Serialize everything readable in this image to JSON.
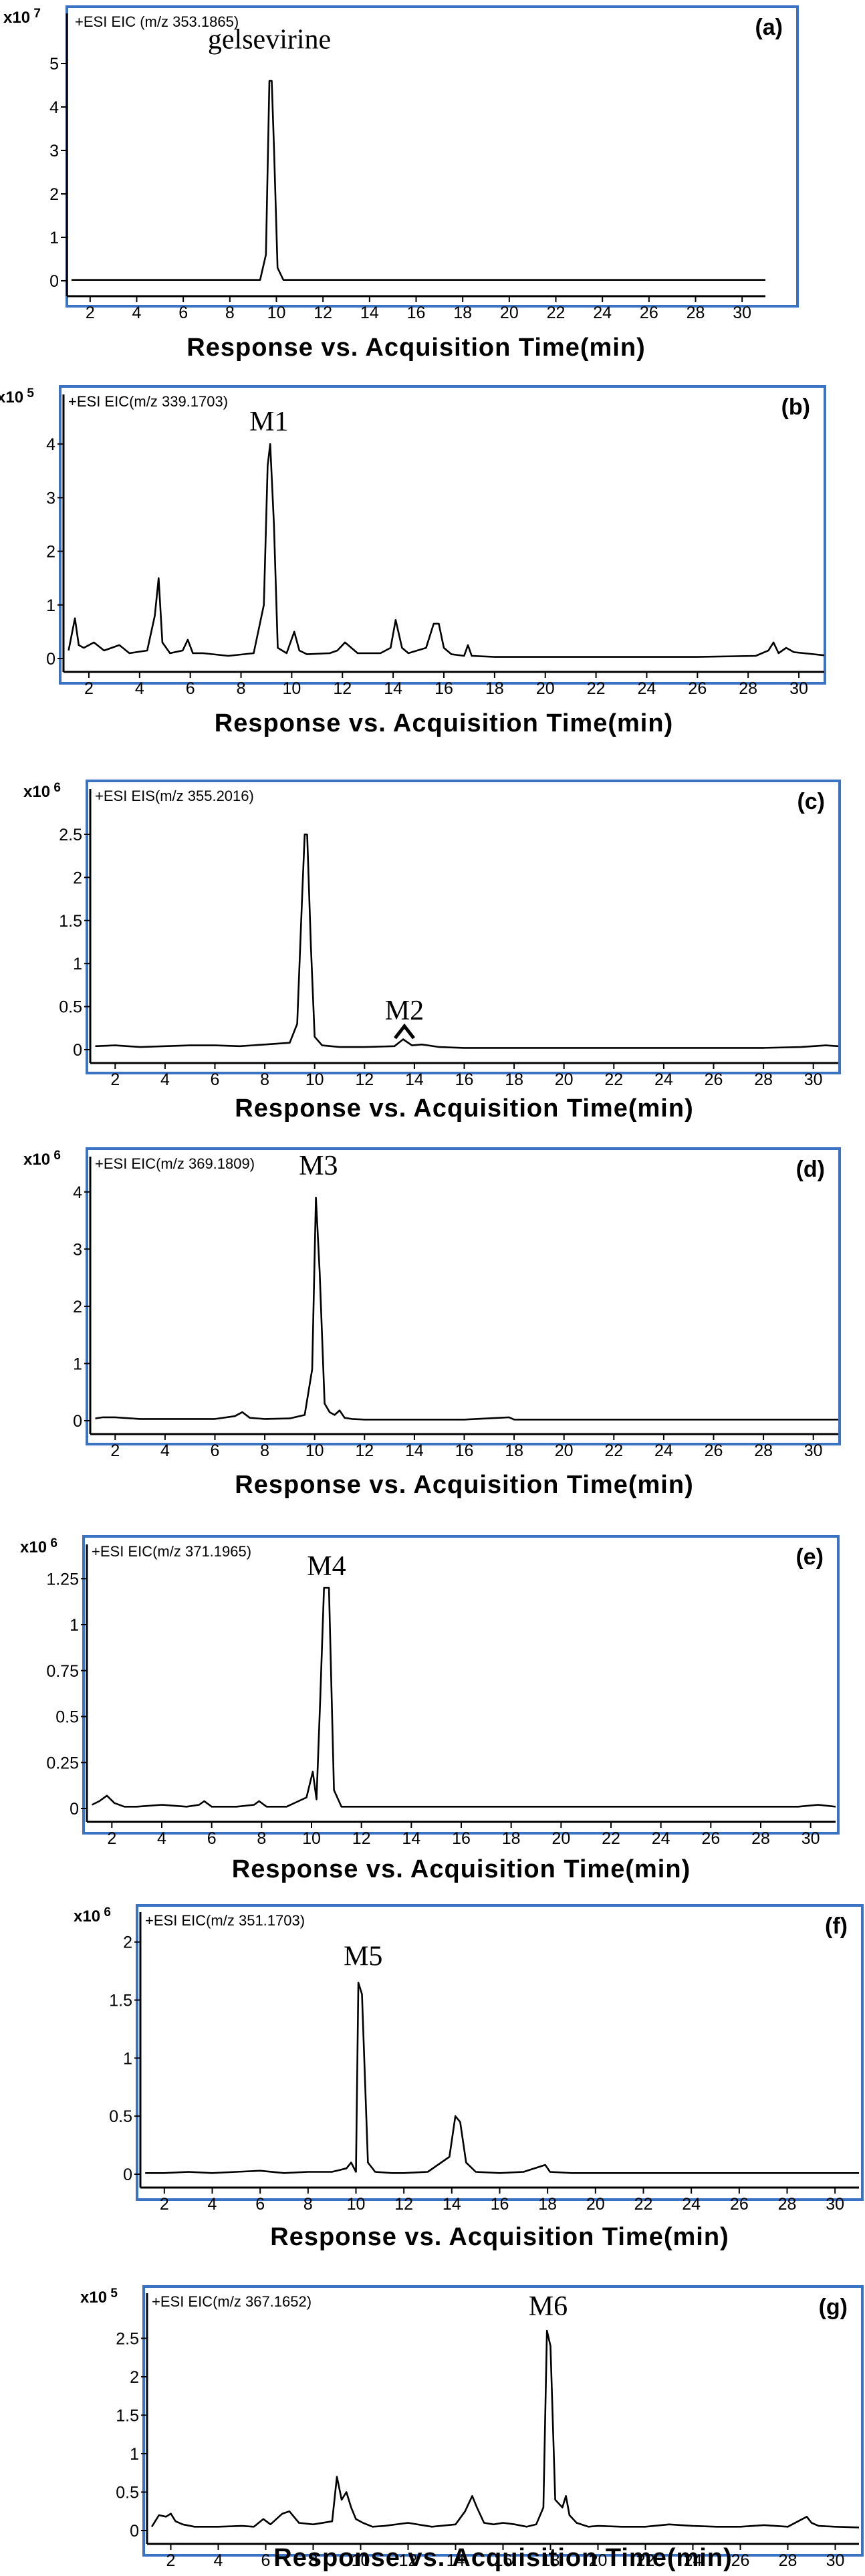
{
  "chart_data": [
    {
      "type": "line",
      "label": "(a)",
      "header": "+ESI EIC (m/z 353.1865)",
      "multiplier": "x10 7",
      "xlabel": "Response  vs.  Acquisition  Time(min)",
      "xlim": [
        1,
        31
      ],
      "ylim": [
        0,
        6
      ],
      "x_ticks": [
        "2",
        "4",
        "6",
        "8",
        "10",
        "12",
        "14",
        "16",
        "18",
        "20",
        "22",
        "24",
        "26",
        "28",
        "30"
      ],
      "y_ticks": [
        "0",
        "1",
        "2",
        "3",
        "4",
        "5"
      ],
      "annotations": [
        {
          "text": "gelsevirine",
          "x": 9.7,
          "y": 5.35
        }
      ],
      "series": [
        {
          "x": [
            1.2,
            9.3,
            9.55,
            9.7,
            9.8,
            9.9,
            10.05,
            10.3,
            31
          ],
          "y": [
            0.02,
            0.02,
            0.6,
            4.6,
            4.6,
            3.0,
            0.3,
            0.02,
            0.02
          ]
        }
      ]
    },
    {
      "type": "line",
      "label": "(b)",
      "header": "+ESI EIC(m/z 339.1703)",
      "multiplier": "x10 5",
      "xlabel": "Response  vs.  Acquisition  Time(min)",
      "xlim": [
        1,
        31
      ],
      "ylim": [
        0,
        4.8
      ],
      "x_ticks": [
        "2",
        "4",
        "6",
        "8",
        "10",
        "12",
        "14",
        "16",
        "18",
        "20",
        "22",
        "24",
        "26",
        "28",
        "30"
      ],
      "y_ticks": [
        "0",
        "1",
        "2",
        "3",
        "4"
      ],
      "annotations": [
        {
          "text": "M1",
          "x": 9.1,
          "y": 4.25
        }
      ],
      "series": [
        {
          "x": [
            1.2,
            1.45,
            1.6,
            1.8,
            2.2,
            2.6,
            3.2,
            3.6,
            4.3,
            4.6,
            4.75,
            4.9,
            5.2,
            5.7,
            5.9,
            6.1,
            6.5,
            7.5,
            8.5,
            8.9,
            9.05,
            9.15,
            9.3,
            9.45,
            9.8,
            10.1,
            10.3,
            10.6,
            11.5,
            11.8,
            12.1,
            12.6,
            13.5,
            13.9,
            14.1,
            14.35,
            14.6,
            15.3,
            15.6,
            15.8,
            16.0,
            16.3,
            16.8,
            16.95,
            17.1,
            18,
            20,
            22,
            24,
            26,
            28.3,
            28.8,
            29.0,
            29.2,
            29.5,
            29.8,
            30.2,
            31
          ],
          "y": [
            0.15,
            0.75,
            0.25,
            0.2,
            0.3,
            0.15,
            0.25,
            0.1,
            0.15,
            0.8,
            1.5,
            0.3,
            0.1,
            0.15,
            0.35,
            0.1,
            0.1,
            0.05,
            0.1,
            1.0,
            3.6,
            4.0,
            2.5,
            0.2,
            0.1,
            0.5,
            0.15,
            0.08,
            0.1,
            0.15,
            0.3,
            0.1,
            0.1,
            0.2,
            0.72,
            0.2,
            0.1,
            0.2,
            0.65,
            0.65,
            0.2,
            0.08,
            0.05,
            0.25,
            0.05,
            0.03,
            0.03,
            0.03,
            0.03,
            0.03,
            0.05,
            0.15,
            0.3,
            0.1,
            0.2,
            0.12,
            0.1,
            0.06
          ]
        }
      ]
    },
    {
      "type": "line",
      "label": "(c)",
      "header": "+ESI EIS(m/z 355.2016)",
      "multiplier": "x10 6",
      "xlabel": "Response  vs.  Acquisition  Time(min)",
      "xlim": [
        1,
        31
      ],
      "ylim": [
        0,
        2.95
      ],
      "x_ticks": [
        "2",
        "4",
        "6",
        "8",
        "10",
        "12",
        "14",
        "16",
        "18",
        "20",
        "22",
        "24",
        "26",
        "28",
        "30"
      ],
      "y_ticks": [
        "0",
        "0.5",
        "1",
        "1.5",
        "2",
        "2.5"
      ],
      "annotations": [
        {
          "text": "M2",
          "x": 13.6,
          "y": 0.35
        }
      ],
      "series": [
        {
          "x": [
            1.2,
            2.0,
            3.0,
            4.0,
            5.0,
            6.0,
            7.0,
            8.0,
            9.0,
            9.3,
            9.5,
            9.6,
            9.7,
            9.85,
            10.0,
            10.3,
            11,
            12,
            13.2,
            13.55,
            13.9,
            14.3,
            15,
            16,
            18,
            20,
            22,
            24,
            26,
            28,
            29.5,
            30.5,
            31
          ],
          "y": [
            0.04,
            0.05,
            0.03,
            0.04,
            0.05,
            0.05,
            0.04,
            0.06,
            0.08,
            0.3,
            1.8,
            2.5,
            2.5,
            1.2,
            0.15,
            0.05,
            0.03,
            0.03,
            0.04,
            0.12,
            0.05,
            0.06,
            0.03,
            0.02,
            0.02,
            0.02,
            0.02,
            0.02,
            0.02,
            0.02,
            0.03,
            0.05,
            0.04
          ]
        }
      ]
    },
    {
      "type": "line",
      "label": "(d)",
      "header": "+ESI EIC(m/z 369.1809)",
      "multiplier": "x10 6",
      "xlabel": "Response  vs.  Acquisition  Time(min)",
      "xlim": [
        1,
        31
      ],
      "ylim": [
        0,
        4.5
      ],
      "x_ticks": [
        "2",
        "4",
        "6",
        "8",
        "10",
        "12",
        "14",
        "16",
        "18",
        "20",
        "22",
        "24",
        "26",
        "28",
        "30"
      ],
      "y_ticks": [
        "0",
        "1",
        "2",
        "3",
        "4"
      ],
      "annotations": [
        {
          "text": "M3",
          "x": 10.15,
          "y": 4.3
        }
      ],
      "series": [
        {
          "x": [
            1.2,
            1.5,
            2.0,
            3,
            4,
            5,
            6,
            6.8,
            7.1,
            7.4,
            8,
            9,
            9.6,
            9.9,
            10.05,
            10.2,
            10.4,
            10.6,
            10.8,
            11.0,
            11.2,
            11.5,
            12,
            14,
            16,
            17.8,
            18,
            20,
            22,
            24,
            26,
            28,
            30,
            31
          ],
          "y": [
            0.04,
            0.06,
            0.06,
            0.03,
            0.03,
            0.03,
            0.03,
            0.08,
            0.15,
            0.05,
            0.03,
            0.04,
            0.1,
            0.9,
            3.9,
            2.6,
            0.3,
            0.15,
            0.1,
            0.18,
            0.05,
            0.03,
            0.02,
            0.02,
            0.02,
            0.06,
            0.02,
            0.02,
            0.02,
            0.02,
            0.02,
            0.02,
            0.02,
            0.02
          ]
        }
      ]
    },
    {
      "type": "line",
      "label": "(e)",
      "header": "+ESI EIC(m/z 371.1965)",
      "multiplier": "x10 6",
      "xlabel": "Response  vs.  Acquisition  Time(min)",
      "xlim": [
        1,
        31
      ],
      "ylim": [
        0,
        1.4
      ],
      "x_ticks": [
        "2",
        "4",
        "6",
        "8",
        "10",
        "12",
        "14",
        "16",
        "18",
        "20",
        "22",
        "24",
        "26",
        "28",
        "30"
      ],
      "y_ticks": [
        "0",
        "0.25",
        "0.5",
        "0.75",
        "1",
        "1.25"
      ],
      "annotations": [
        {
          "text": "M4",
          "x": 10.6,
          "y": 1.27
        }
      ],
      "series": [
        {
          "x": [
            1.2,
            1.5,
            1.8,
            2.1,
            2.5,
            3,
            4,
            5,
            5.5,
            5.7,
            6,
            7,
            7.7,
            7.9,
            8.2,
            9,
            9.8,
            10.05,
            10.2,
            10.35,
            10.5,
            10.7,
            10.9,
            11.2,
            12,
            13,
            14,
            15,
            16,
            17,
            18,
            20,
            22,
            24,
            26,
            28,
            29.5,
            30.3,
            31
          ],
          "y": [
            0.02,
            0.04,
            0.07,
            0.03,
            0.01,
            0.01,
            0.02,
            0.01,
            0.02,
            0.04,
            0.01,
            0.01,
            0.02,
            0.04,
            0.01,
            0.01,
            0.06,
            0.2,
            0.05,
            0.6,
            1.2,
            1.2,
            0.1,
            0.01,
            0.01,
            0.01,
            0.01,
            0.01,
            0.01,
            0.01,
            0.01,
            0.01,
            0.01,
            0.01,
            0.01,
            0.01,
            0.01,
            0.02,
            0.01
          ]
        }
      ]
    },
    {
      "type": "line",
      "label": "(f)",
      "header": "+ESI EIC(m/z 351.1703)",
      "multiplier": "x10 6",
      "xlabel": "Response  vs.  Acquisition  Time(min)",
      "xlim": [
        1,
        31
      ],
      "ylim": [
        0,
        2.2
      ],
      "x_ticks": [
        "2",
        "4",
        "6",
        "8",
        "10",
        "12",
        "14",
        "16",
        "18",
        "20",
        "22",
        "24",
        "26",
        "28",
        "30"
      ],
      "y_ticks": [
        "0",
        "0.5",
        "1",
        "1.5",
        "2"
      ],
      "annotations": [
        {
          "text": "M5",
          "x": 10.3,
          "y": 1.8
        }
      ],
      "series": [
        {
          "x": [
            1.2,
            2,
            3,
            4,
            5,
            6,
            7,
            8,
            9,
            9.6,
            9.8,
            10.0,
            10.1,
            10.25,
            10.5,
            10.8,
            11.5,
            12,
            13,
            13.9,
            14.15,
            14.35,
            14.6,
            15,
            16,
            17,
            17.9,
            18.1,
            19,
            20,
            22,
            24,
            26,
            28,
            30,
            31
          ],
          "y": [
            0.01,
            0.01,
            0.02,
            0.01,
            0.02,
            0.03,
            0.01,
            0.02,
            0.02,
            0.05,
            0.1,
            0.02,
            1.65,
            1.55,
            0.1,
            0.02,
            0.01,
            0.01,
            0.02,
            0.15,
            0.5,
            0.45,
            0.1,
            0.02,
            0.01,
            0.02,
            0.08,
            0.02,
            0.01,
            0.01,
            0.01,
            0.01,
            0.01,
            0.01,
            0.01,
            0.01
          ]
        }
      ]
    },
    {
      "type": "line",
      "label": "(g)",
      "header": "+ESI EIC(m/z 367.1652)",
      "multiplier": "x10 5",
      "xlabel": "Response  vs.  Acquisition  Time(min)",
      "xlim": [
        1,
        31
      ],
      "ylim": [
        0,
        3.0
      ],
      "x_ticks": [
        "2",
        "4",
        "6",
        "8",
        "10",
        "12",
        "14",
        "16",
        "18",
        "20",
        "22",
        "24",
        "26",
        "28",
        "30"
      ],
      "y_ticks": [
        "0",
        "0.5",
        "1",
        "1.5",
        "2",
        "2.5"
      ],
      "annotations": [
        {
          "text": "M6",
          "x": 17.9,
          "y": 2.8
        }
      ],
      "series": [
        {
          "x": [
            1.2,
            1.5,
            1.8,
            2.0,
            2.2,
            2.5,
            3,
            4,
            5,
            5.5,
            5.9,
            6.2,
            6.7,
            7.0,
            7.4,
            8,
            8.8,
            9.0,
            9.2,
            9.4,
            9.6,
            9.8,
            10.1,
            10.5,
            11,
            12,
            13,
            14,
            14.4,
            14.7,
            14.9,
            15.2,
            15.6,
            16,
            16.5,
            17,
            17.4,
            17.7,
            17.85,
            18.0,
            18.2,
            18.5,
            18.65,
            18.8,
            19.1,
            19.6,
            20,
            21,
            22,
            23,
            24,
            25,
            26,
            27,
            28,
            28.8,
            29.0,
            29.3,
            30,
            31
          ],
          "y": [
            0.05,
            0.2,
            0.18,
            0.22,
            0.12,
            0.08,
            0.05,
            0.05,
            0.06,
            0.05,
            0.15,
            0.08,
            0.22,
            0.25,
            0.1,
            0.08,
            0.12,
            0.7,
            0.4,
            0.5,
            0.3,
            0.15,
            0.1,
            0.05,
            0.06,
            0.1,
            0.05,
            0.08,
            0.25,
            0.45,
            0.3,
            0.1,
            0.08,
            0.1,
            0.08,
            0.05,
            0.08,
            0.3,
            2.6,
            2.4,
            0.4,
            0.3,
            0.45,
            0.2,
            0.1,
            0.05,
            0.06,
            0.05,
            0.05,
            0.08,
            0.06,
            0.05,
            0.05,
            0.07,
            0.05,
            0.18,
            0.1,
            0.06,
            0.05,
            0.04
          ]
        }
      ]
    }
  ]
}
